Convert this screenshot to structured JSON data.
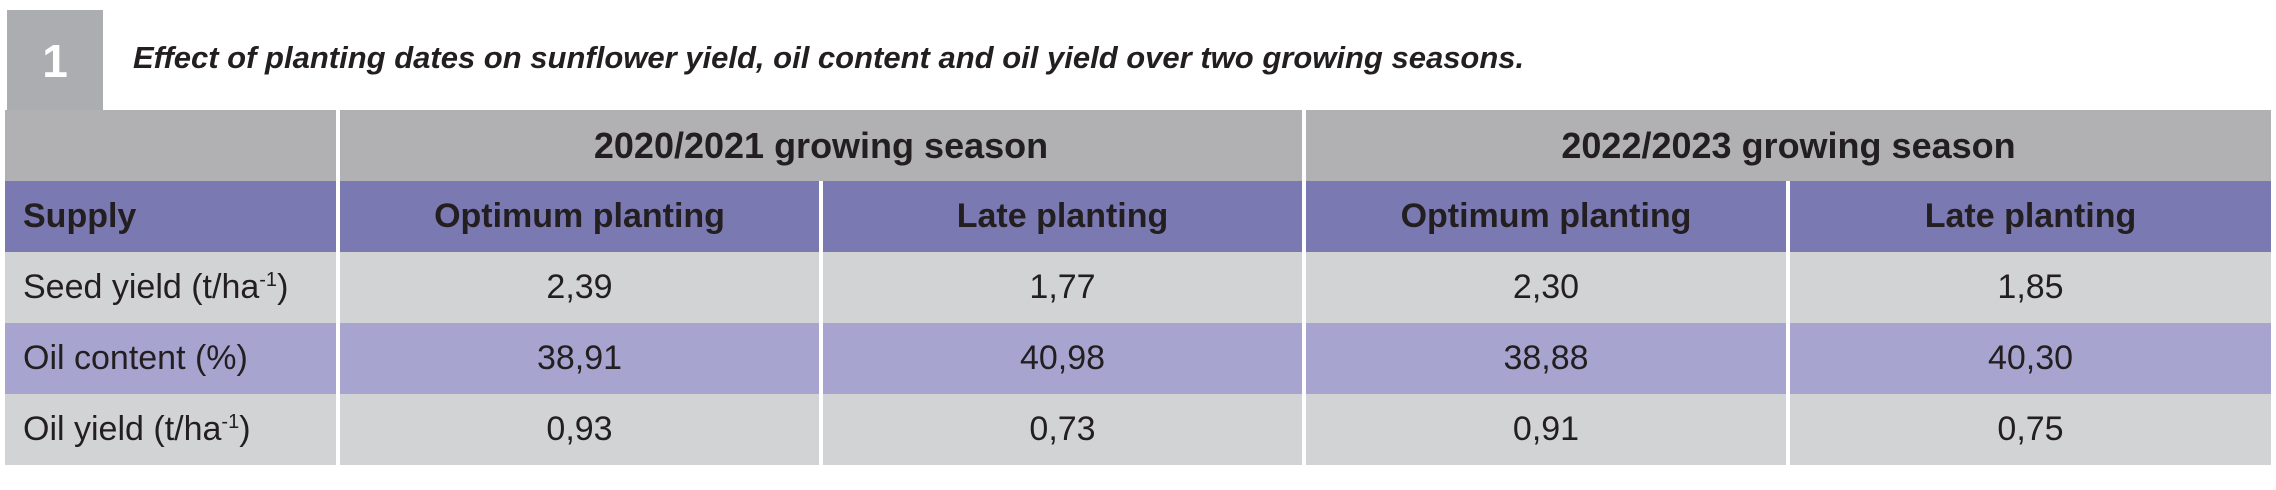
{
  "table_number": "1",
  "caption": "Effect of planting dates on sunflower yield, oil content and oil yield over two growing seasons.",
  "seasons": [
    {
      "label": "2020/2021 growing season"
    },
    {
      "label": "2022/2023 growing season"
    }
  ],
  "header": {
    "first": "Supply",
    "columns": [
      "Optimum planting",
      "Late planting",
      "Optimum planting",
      "Late planting"
    ]
  },
  "rows": [
    {
      "label": "Seed yield (t/ha",
      "label_sup": "-1",
      "label_end": ")",
      "values": [
        "2,39",
        "1,77",
        "2,30",
        "1,85"
      ]
    },
    {
      "label": "Oil content (%)",
      "label_sup": "",
      "label_end": "",
      "values": [
        "38,91",
        "40,98",
        "38,88",
        "40,30"
      ]
    },
    {
      "label": "Oil yield (t/ha",
      "label_sup": "-1",
      "label_end": ")",
      "values": [
        "0,93",
        "0,73",
        "0,91",
        "0,75"
      ]
    }
  ],
  "colors": {
    "number_box": "#acadb1",
    "season_header": "#b1b1b4",
    "column_header": "#7b79b2",
    "row_gray": "#d2d3d5",
    "row_purple": "#a7a5cf"
  }
}
